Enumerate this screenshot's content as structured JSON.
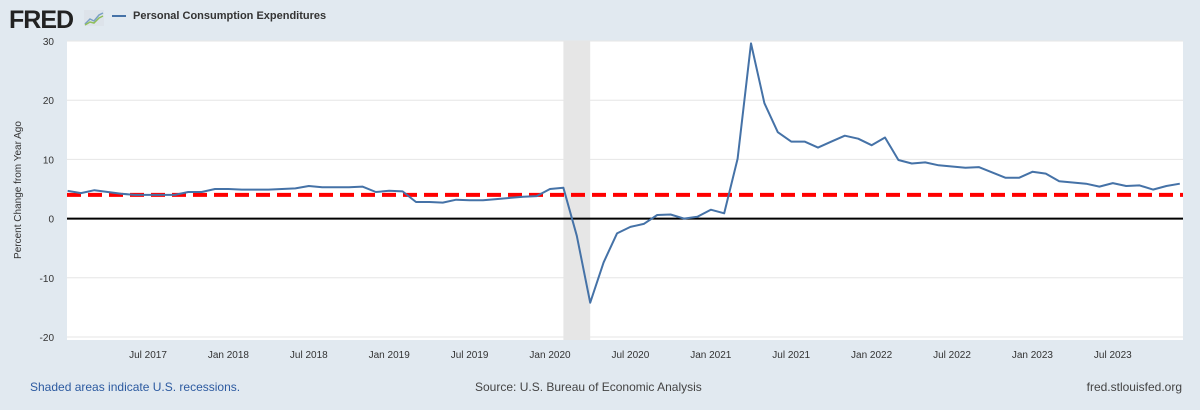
{
  "header": {
    "logo": "FRED",
    "legend_label": "Personal Consumption Expenditures"
  },
  "footer": {
    "note": "Shaded areas indicate U.S. recessions.",
    "source": "Source: U.S. Bureau of Economic Analysis",
    "site": "fred.stlouisfed.org"
  },
  "colors": {
    "series": "#4572a7",
    "reference_line": "#ff0000",
    "zero_line": "#000000",
    "recession": "#e6e6e6",
    "background": "#e1e9f0"
  },
  "chart_data": {
    "type": "line",
    "title": "",
    "xlabel": "",
    "ylabel": "Percent Change from Year Ago",
    "ylim": [
      -20,
      30
    ],
    "yticks": [
      30,
      20,
      10,
      0,
      -10,
      -20
    ],
    "xticks": [
      {
        "x": "2017-07",
        "label": "Jul 2017"
      },
      {
        "x": "2018-01",
        "label": "Jan 2018"
      },
      {
        "x": "2018-07",
        "label": "Jul 2018"
      },
      {
        "x": "2019-01",
        "label": "Jan 2019"
      },
      {
        "x": "2019-07",
        "label": "Jul 2019"
      },
      {
        "x": "2020-01",
        "label": "Jan 2020"
      },
      {
        "x": "2020-07",
        "label": "Jul 2020"
      },
      {
        "x": "2021-01",
        "label": "Jan 2021"
      },
      {
        "x": "2021-07",
        "label": "Jul 2021"
      },
      {
        "x": "2022-01",
        "label": "Jan 2022"
      },
      {
        "x": "2022-07",
        "label": "Jul 2022"
      },
      {
        "x": "2023-01",
        "label": "Jan 2023"
      },
      {
        "x": "2023-07",
        "label": "Jul 2023"
      }
    ],
    "grid": true,
    "legend": "top-left",
    "recession": {
      "start": "2020-02",
      "end": "2020-04"
    },
    "reference_lines": [
      {
        "y": 4,
        "style": "dashed",
        "color": "#ff0000"
      },
      {
        "y": 0,
        "style": "solid",
        "color": "#000000"
      }
    ],
    "series": [
      {
        "name": "Personal Consumption Expenditures",
        "x": [
          "2017-01",
          "2017-02",
          "2017-03",
          "2017-04",
          "2017-05",
          "2017-06",
          "2017-07",
          "2017-08",
          "2017-09",
          "2017-10",
          "2017-11",
          "2017-12",
          "2018-01",
          "2018-02",
          "2018-03",
          "2018-04",
          "2018-05",
          "2018-06",
          "2018-07",
          "2018-08",
          "2018-09",
          "2018-10",
          "2018-11",
          "2018-12",
          "2019-01",
          "2019-02",
          "2019-03",
          "2019-04",
          "2019-05",
          "2019-06",
          "2019-07",
          "2019-08",
          "2019-09",
          "2019-10",
          "2019-11",
          "2019-12",
          "2020-01",
          "2020-02",
          "2020-03",
          "2020-04",
          "2020-05",
          "2020-06",
          "2020-07",
          "2020-08",
          "2020-09",
          "2020-10",
          "2020-11",
          "2020-12",
          "2021-01",
          "2021-02",
          "2021-03",
          "2021-04",
          "2021-05",
          "2021-06",
          "2021-07",
          "2021-08",
          "2021-09",
          "2021-10",
          "2021-11",
          "2021-12",
          "2022-01",
          "2022-02",
          "2022-03",
          "2022-04",
          "2022-05",
          "2022-06",
          "2022-07",
          "2022-08",
          "2022-09",
          "2022-10",
          "2022-11",
          "2022-12",
          "2023-01",
          "2023-02",
          "2023-03",
          "2023-04",
          "2023-05",
          "2023-06",
          "2023-07",
          "2023-08",
          "2023-09",
          "2023-10",
          "2023-11",
          "2023-12"
        ],
        "values": [
          4.7,
          4.3,
          4.8,
          4.5,
          4.2,
          4.0,
          4.0,
          4.0,
          4.0,
          4.5,
          4.5,
          5.0,
          5.0,
          4.9,
          4.9,
          4.9,
          5.0,
          5.1,
          5.5,
          5.3,
          5.3,
          5.3,
          5.4,
          4.5,
          4.7,
          4.6,
          2.8,
          2.8,
          2.7,
          3.2,
          3.1,
          3.1,
          3.3,
          3.5,
          3.7,
          3.8,
          5.0,
          5.2,
          -2.9,
          -14.2,
          -7.4,
          -2.5,
          -1.4,
          -0.9,
          0.6,
          0.7,
          0.0,
          0.3,
          1.5,
          0.9,
          10.1,
          29.6,
          19.5,
          14.6,
          13.0,
          13.0,
          12.0,
          13.0,
          14.0,
          13.5,
          12.4,
          13.7,
          9.9,
          9.3,
          9.5,
          9.0,
          8.8,
          8.6,
          8.7,
          7.8,
          6.9,
          6.9,
          7.9,
          7.6,
          6.3,
          6.1,
          5.9,
          5.4,
          6.0,
          5.5,
          5.6,
          4.9,
          5.5,
          5.9
        ]
      }
    ]
  }
}
